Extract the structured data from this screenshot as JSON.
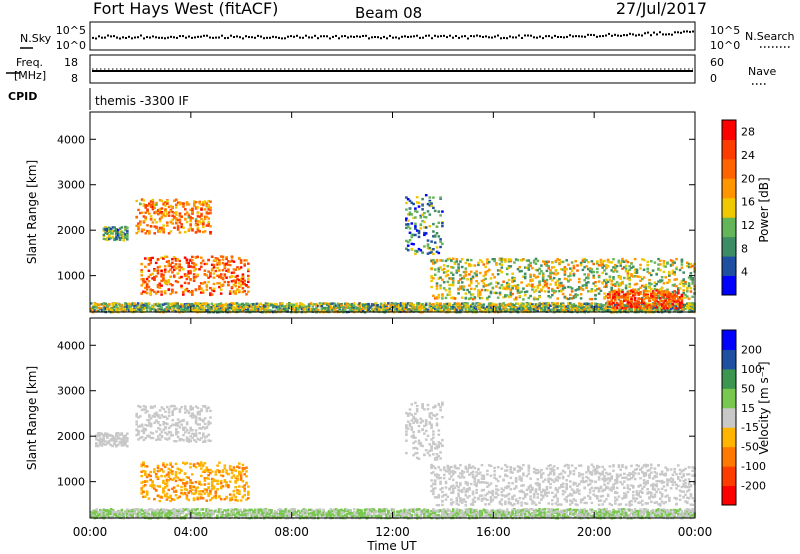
{
  "header": {
    "station": "Fort Hays West (fitACF)",
    "beam": "Beam 08",
    "date": "27/Jul/2017"
  },
  "aux_panels": {
    "noise": {
      "left_label": "N.Sky",
      "left_ticks": [
        "10^5",
        "10^0"
      ],
      "right_ticks": [
        "10^5",
        "10^0"
      ],
      "right_label": "N.Search"
    },
    "freq": {
      "left_label_1": "Freq.",
      "left_label_2": "[MHz]",
      "left_ticks": [
        "18",
        "8"
      ],
      "right_ticks": [
        "60",
        "0"
      ],
      "right_label": "Nave"
    },
    "cpid": {
      "left_label": "CPID",
      "program": "themis -3300 IF"
    }
  },
  "colors": {
    "power_scale": [
      "#0000ff",
      "#1f4fa0",
      "#3c8c64",
      "#64b45a",
      "#f0c800",
      "#ff9600",
      "#ff6400",
      "#ff3c00",
      "#ff0000"
    ],
    "velocity_scale": [
      "#ff0000",
      "#ff3c00",
      "#ff7800",
      "#ffb400",
      "#c8c8c8",
      "#78c850",
      "#3c9650",
      "#1f4fa0",
      "#0000ff"
    ],
    "ground_scatter": "#c8c8c8"
  },
  "chart_data": [
    {
      "type": "heatmap",
      "ylabel": "Slant Range [km]",
      "yticks": [
        "1000",
        "2000",
        "3000",
        "4000"
      ],
      "ylim": [
        200,
        4600
      ],
      "xlim": [
        0,
        24
      ],
      "xticks": [
        "00:00",
        "04:00",
        "08:00",
        "12:00",
        "16:00",
        "20:00",
        "00:00"
      ],
      "colorbar": {
        "label": "Power [dB]",
        "ticks": [
          "4",
          "8",
          "12",
          "16",
          "20",
          "24",
          "28"
        ],
        "range": [
          0,
          30
        ]
      },
      "regions": [
        {
          "t": [
            0.5,
            1.5
          ],
          "range": [
            1800,
            2100
          ],
          "value": 10
        },
        {
          "t": [
            1.8,
            4.8
          ],
          "range": [
            1950,
            2700
          ],
          "value": 20
        },
        {
          "t": [
            2.0,
            6.3
          ],
          "range": [
            600,
            1450
          ],
          "value": 22
        },
        {
          "t": [
            0,
            24
          ],
          "range": [
            220,
            420
          ],
          "value": 12
        },
        {
          "t": [
            12.5,
            14
          ],
          "range": [
            1500,
            2800
          ],
          "value": 8
        },
        {
          "t": [
            13.5,
            24
          ],
          "range": [
            500,
            1400
          ],
          "value": 14
        },
        {
          "t": [
            20.5,
            23.5
          ],
          "range": [
            300,
            700
          ],
          "value": 24
        }
      ]
    },
    {
      "type": "heatmap",
      "ylabel": "Slant Range [km]",
      "yticks": [
        "1000",
        "2000",
        "3000",
        "4000"
      ],
      "ylim": [
        200,
        4600
      ],
      "xlim": [
        0,
        24
      ],
      "xticks": [
        "00:00",
        "04:00",
        "08:00",
        "12:00",
        "16:00",
        "20:00",
        "00:00"
      ],
      "xlabel": "Time UT",
      "colorbar": {
        "label": "Velocity [m s⁻¹]",
        "ticks": [
          "200",
          "100",
          "50",
          "15",
          "-15",
          "-50",
          "-100",
          "-200"
        ],
        "range": [
          -250,
          250
        ]
      },
      "regions": [
        {
          "t": [
            0.2,
            1.5
          ],
          "range": [
            1800,
            2100
          ],
          "value": 0,
          "ground_scatter": true
        },
        {
          "t": [
            1.8,
            4.8
          ],
          "range": [
            1900,
            2700
          ],
          "value": 0,
          "ground_scatter": true
        },
        {
          "t": [
            2.0,
            6.3
          ],
          "range": [
            600,
            1450
          ],
          "value": -70
        },
        {
          "t": [
            0,
            24
          ],
          "range": [
            220,
            420
          ],
          "value": 30
        },
        {
          "t": [
            12.5,
            14
          ],
          "range": [
            1500,
            2800
          ],
          "value": 0,
          "ground_scatter": true
        },
        {
          "t": [
            13.5,
            24
          ],
          "range": [
            500,
            1400
          ],
          "value": 0,
          "ground_scatter": true
        }
      ]
    }
  ]
}
